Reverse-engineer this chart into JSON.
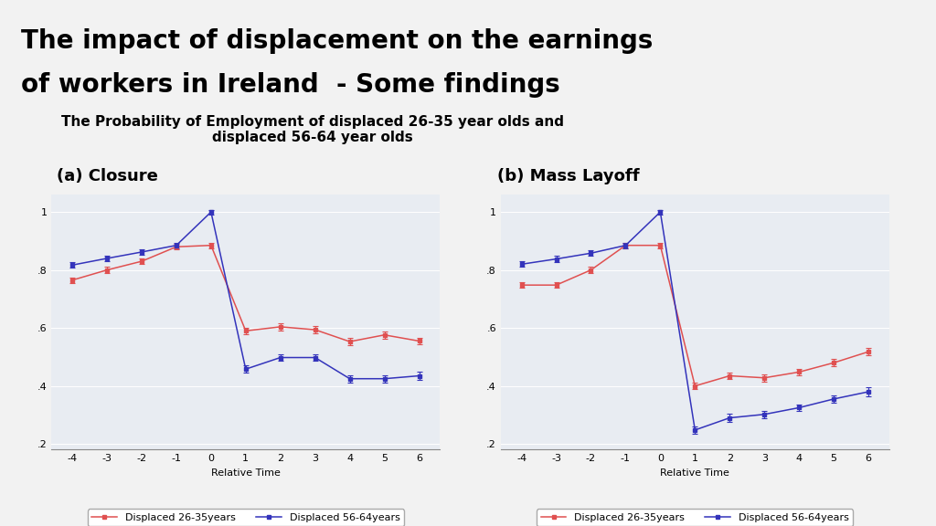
{
  "title_line1": "The impact of displacement on the earnings",
  "title_line2": "of workers in Ireland  - Some findings",
  "subtitle": "The Probability of Employment of displaced 26-35 year olds and\ndisplaced 56-64 year olds",
  "panel_a_title": "(a) Closure",
  "panel_b_title": "(b) Mass Layoff",
  "x": [
    -4,
    -3,
    -2,
    -1,
    0,
    1,
    2,
    3,
    4,
    5,
    6
  ],
  "xlabel": "Relative Time",
  "ylim": [
    0.18,
    1.06
  ],
  "yticks": [
    0.2,
    0.4,
    0.6,
    0.8,
    1.0
  ],
  "ytick_labels": [
    ".2",
    ".4",
    ".6",
    ".8",
    "1"
  ],
  "closure_red_y": [
    0.765,
    0.8,
    0.83,
    0.88,
    0.885,
    0.59,
    0.604,
    0.594,
    0.553,
    0.576,
    0.555
  ],
  "closure_blue_y": [
    0.817,
    0.84,
    0.862,
    0.885,
    1.0,
    0.458,
    0.498,
    0.498,
    0.425,
    0.425,
    0.435
  ],
  "closure_red_err": [
    0.01,
    0.01,
    0.01,
    0.01,
    0.01,
    0.012,
    0.012,
    0.012,
    0.012,
    0.012,
    0.012
  ],
  "closure_blue_err": [
    0.01,
    0.01,
    0.01,
    0.01,
    0.008,
    0.012,
    0.012,
    0.012,
    0.012,
    0.012,
    0.015
  ],
  "layoff_red_y": [
    0.748,
    0.748,
    0.8,
    0.885,
    0.885,
    0.4,
    0.435,
    0.428,
    0.448,
    0.48,
    0.518
  ],
  "layoff_blue_y": [
    0.82,
    0.838,
    0.858,
    0.885,
    1.0,
    0.248,
    0.29,
    0.302,
    0.325,
    0.355,
    0.38
  ],
  "layoff_red_err": [
    0.01,
    0.01,
    0.01,
    0.01,
    0.01,
    0.012,
    0.012,
    0.012,
    0.012,
    0.012,
    0.012
  ],
  "layoff_blue_err": [
    0.01,
    0.01,
    0.01,
    0.01,
    0.008,
    0.012,
    0.015,
    0.012,
    0.012,
    0.012,
    0.015
  ],
  "color_red": "#E05050",
  "color_blue": "#3333BB",
  "panel_bg": "#E8ECF2",
  "title_bg": "#D8D8D8",
  "outer_bg": "#F2F2F2",
  "navy_box_color": "#1A2B50",
  "legend_label_red": "Displaced 26-35years",
  "legend_label_blue": "Displaced 56-64years",
  "title_fontsize": 20,
  "subtitle_fontsize": 11,
  "panel_title_fontsize": 13,
  "tick_fontsize": 8,
  "legend_fontsize": 8
}
